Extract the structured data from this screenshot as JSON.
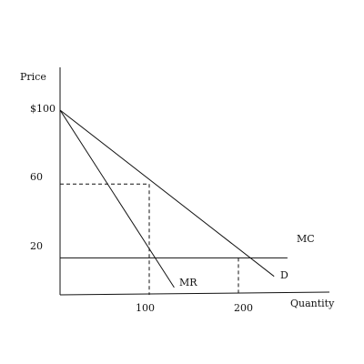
{
  "chart_data": {
    "type": "line",
    "xlabel": "Quantity",
    "ylabel": "Price",
    "xlim": [
      0,
      240
    ],
    "ylim": [
      0,
      110
    ],
    "x_ticks": [
      {
        "value": 100,
        "label": "100"
      },
      {
        "value": 200,
        "label": "200"
      }
    ],
    "y_ticks": [
      {
        "value": 100,
        "label": "$100"
      },
      {
        "value": 60,
        "label": "60"
      },
      {
        "value": 20,
        "label": "20"
      }
    ],
    "grid": false,
    "series": [
      {
        "name": "D",
        "x": [
          0,
          240
        ],
        "y": [
          100,
          10
        ]
      },
      {
        "name": "MR",
        "x": [
          0,
          128
        ],
        "y": [
          100,
          4
        ]
      },
      {
        "name": "MC",
        "x": [
          0,
          255
        ],
        "y": [
          20,
          20
        ]
      }
    ],
    "guides": [
      {
        "x": [
          0,
          100
        ],
        "y": [
          60,
          60
        ]
      },
      {
        "x": [
          100,
          100
        ],
        "y": [
          60,
          0
        ]
      },
      {
        "x": [
          200,
          200
        ],
        "y": [
          20,
          0
        ]
      }
    ]
  }
}
